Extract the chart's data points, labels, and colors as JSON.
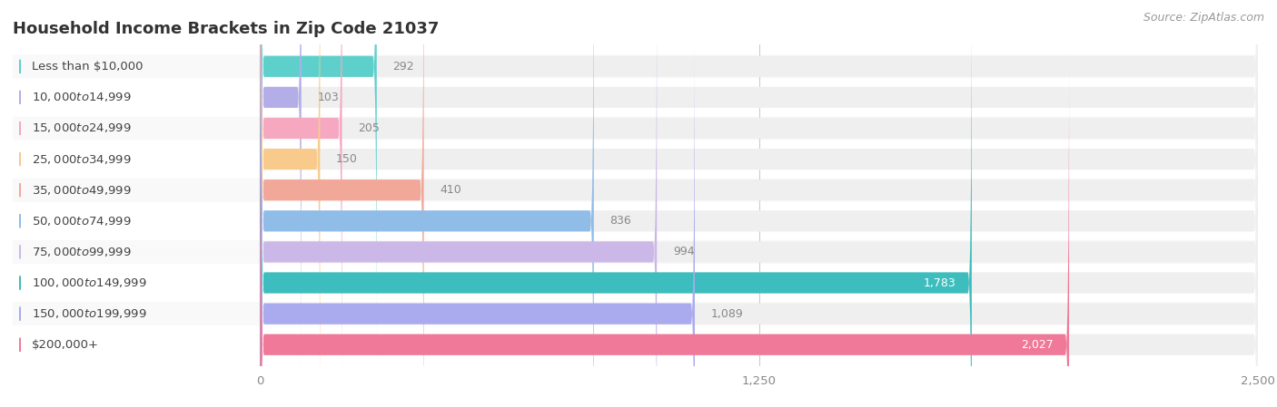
{
  "title": "Household Income Brackets in Zip Code 21037",
  "source": "Source: ZipAtlas.com",
  "categories": [
    "Less than $10,000",
    "$10,000 to $14,999",
    "$15,000 to $24,999",
    "$25,000 to $34,999",
    "$35,000 to $49,999",
    "$50,000 to $74,999",
    "$75,000 to $99,999",
    "$100,000 to $149,999",
    "$150,000 to $199,999",
    "$200,000+"
  ],
  "values": [
    292,
    103,
    205,
    150,
    410,
    836,
    994,
    1783,
    1089,
    2027
  ],
  "bar_colors": [
    "#5dd0cc",
    "#b3aee8",
    "#f5a8c0",
    "#f8ca8c",
    "#f2a898",
    "#90bce8",
    "#ccb8e8",
    "#3dbdbd",
    "#aaaaee",
    "#f07898"
  ],
  "bar_bg_color": "#efefef",
  "background_color": "#ffffff",
  "row_bg_colors": [
    "#f9f9f9",
    "#ffffff"
  ],
  "xlim": [
    0,
    2500
  ],
  "xticks": [
    0,
    1250,
    2500
  ],
  "title_fontsize": 13,
  "label_fontsize": 9.5,
  "value_fontsize": 9,
  "source_fontsize": 9,
  "value_color_inside": "#ffffff",
  "value_color_outside": "#888888",
  "label_color": "#444444"
}
